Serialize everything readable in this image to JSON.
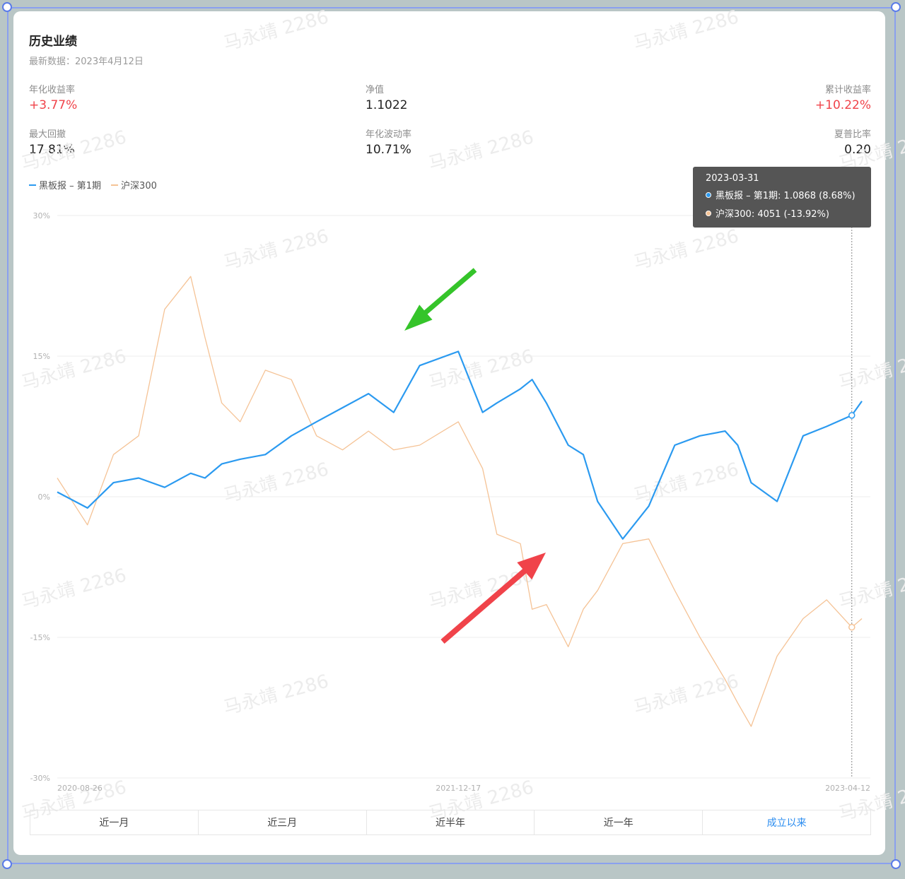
{
  "header": {
    "title": "历史业绩",
    "latest": "最新数据：2023年4月12日"
  },
  "stats": [
    {
      "label": "年化收益率",
      "value": "+3.77%",
      "color": "red"
    },
    {
      "label": "净值",
      "value": "1.1022",
      "color": "dark"
    },
    {
      "label": "累计收益率",
      "value": "+10.22%",
      "color": "red"
    },
    {
      "label": "最大回撤",
      "value": "17.81%",
      "color": "dark"
    },
    {
      "label": "年化波动率",
      "value": "10.71%",
      "color": "dark"
    },
    {
      "label": "夏普比率",
      "value": "0.20",
      "color": "dark"
    }
  ],
  "tooltip": {
    "date": "2023-03-31",
    "row1": "黑板报 – 第1期: 1.0868 (8.68%)",
    "row2": "沪深300: 4051 (-13.92%)"
  },
  "tabs": [
    "近一月",
    "近三月",
    "近半年",
    "近一年",
    "成立以来"
  ],
  "active_tab": 4,
  "watermark": "马永靖 2286",
  "colors": {
    "fund": "#2b9af0",
    "index": "#f5c396",
    "red": "#f0434a",
    "green": "#35c42a"
  },
  "chart_data": {
    "type": "line",
    "title": "",
    "legend": "top-left",
    "ylim": [
      -30,
      30
    ],
    "y_ticks": [
      "30%",
      "15%",
      "0%",
      "-15%",
      "-30%"
    ],
    "x_ticks": [
      "2020-08-26",
      "2021-12-17",
      "2023-04-12"
    ],
    "x": [
      "2020-08-26",
      "2020-10-01",
      "2020-11-01",
      "2020-12-01",
      "2021-01-01",
      "2021-02-01",
      "2021-02-18",
      "2021-03-10",
      "2021-04-01",
      "2021-05-01",
      "2021-06-01",
      "2021-07-01",
      "2021-08-01",
      "2021-09-01",
      "2021-10-01",
      "2021-11-01",
      "2021-12-17",
      "2022-01-15",
      "2022-02-01",
      "2022-03-01",
      "2022-03-15",
      "2022-04-01",
      "2022-04-27",
      "2022-05-15",
      "2022-06-01",
      "2022-07-01",
      "2022-08-01",
      "2022-09-01",
      "2022-10-01",
      "2022-10-31",
      "2022-11-15",
      "2022-12-01",
      "2023-01-01",
      "2023-02-01",
      "2023-03-01",
      "2023-03-31",
      "2023-04-12"
    ],
    "series": [
      {
        "name": "黑板报 – 第1期",
        "values": [
          0.5,
          -1.2,
          1.5,
          2.0,
          1.0,
          2.5,
          2.0,
          3.5,
          4.0,
          4.5,
          6.5,
          8.0,
          9.5,
          11.0,
          9.0,
          14.0,
          15.5,
          9.0,
          10.0,
          11.5,
          12.5,
          10.0,
          5.5,
          4.5,
          -0.5,
          -4.5,
          -1.0,
          5.5,
          6.5,
          7.0,
          5.5,
          1.5,
          -0.5,
          6.5,
          7.5,
          8.68,
          10.2
        ]
      },
      {
        "name": "沪深300",
        "values": [
          2.0,
          -3.0,
          4.5,
          6.5,
          20.0,
          23.5,
          17.0,
          10.0,
          8.0,
          13.5,
          12.5,
          6.5,
          5.0,
          7.0,
          5.0,
          5.5,
          8.0,
          3.0,
          -4.0,
          -5.0,
          -12.0,
          -11.5,
          -16.0,
          -12.0,
          -10.0,
          -5.0,
          -4.5,
          -10.0,
          -15.0,
          -19.5,
          -22.0,
          -24.5,
          -17.0,
          -13.0,
          -11.0,
          -13.92,
          -13.0
        ]
      }
    ]
  }
}
